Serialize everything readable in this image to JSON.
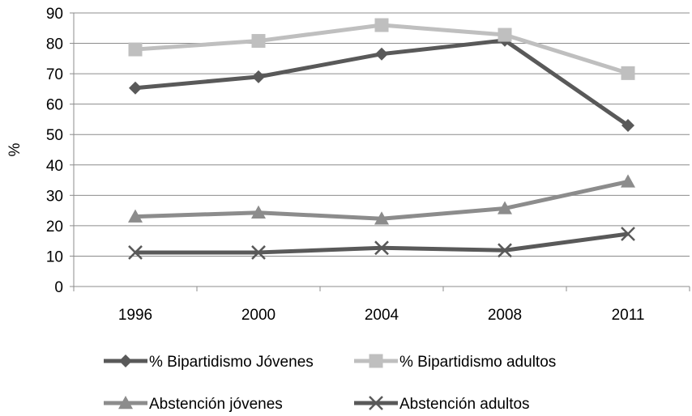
{
  "chart_data": {
    "type": "line",
    "title": "",
    "xlabel": "",
    "ylabel": "%",
    "ylim": [
      0,
      90
    ],
    "yticks": [
      0,
      10,
      20,
      30,
      40,
      50,
      60,
      70,
      80,
      90
    ],
    "categories": [
      "1996",
      "2000",
      "2004",
      "2008",
      "2011"
    ],
    "grid": "horizontal",
    "legend_position": "bottom",
    "series": [
      {
        "name": "% Bipartidismo Jóvenes",
        "values": [
          65.3,
          69.0,
          76.5,
          81.0,
          53.0
        ],
        "color": "#595959",
        "marker": "diamond"
      },
      {
        "name": "% Bipartidismo adultos",
        "values": [
          78.0,
          80.8,
          86.0,
          82.8,
          70.2
        ],
        "color": "#bfbfbf",
        "marker": "square"
      },
      {
        "name": "Abstención jóvenes",
        "values": [
          23.0,
          24.3,
          22.3,
          25.7,
          34.5
        ],
        "color": "#8c8c8c",
        "marker": "triangle"
      },
      {
        "name": "Abstención adultos",
        "values": [
          11.2,
          11.2,
          12.7,
          11.9,
          17.3
        ],
        "color": "#595959",
        "marker": "x"
      }
    ]
  }
}
